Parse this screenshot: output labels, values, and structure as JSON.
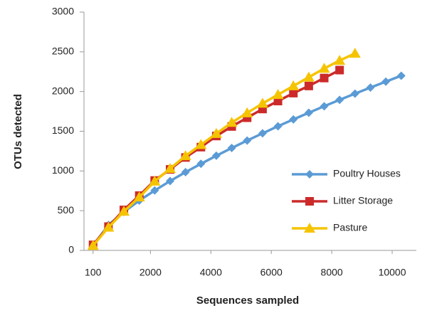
{
  "chart_data": {
    "type": "line",
    "x_label": "Sequences sampled",
    "y_label": "OTUs detected",
    "xlim": [
      -200,
      10800
    ],
    "xticks": [
      100,
      2000,
      4000,
      6000,
      8000,
      10000
    ],
    "ylim": [
      0,
      3000
    ],
    "yticks": [
      0,
      500,
      1000,
      1500,
      2000,
      2500,
      3000
    ],
    "grid": false,
    "legend": "right",
    "series": [
      {
        "name": "Poultry Houses",
        "color": "#5b9bd5",
        "marker": "diamond",
        "x": [
          100,
          610,
          1120,
          1630,
          2140,
          2650,
          3160,
          3670,
          4180,
          4690,
          5200,
          5710,
          6220,
          6730,
          7240,
          7750,
          8260,
          8770,
          9280,
          9790,
          10300
        ],
        "values": [
          60,
          320,
          484,
          627,
          754,
          873,
          985,
          1090,
          1192,
          1289,
          1383,
          1474,
          1563,
          1649,
          1733,
          1815,
          1895,
          1973,
          2050,
          2125,
          2199
        ]
      },
      {
        "name": "Litter Storage",
        "color": "#cc2a2a",
        "marker": "square",
        "x": [
          100,
          610,
          1120,
          1630,
          2140,
          2650,
          3160,
          3670,
          4180,
          4690,
          5200,
          5710,
          6220,
          6730,
          7240,
          7750,
          8260
        ],
        "values": [
          70,
          300,
          510,
          690,
          880,
          1020,
          1170,
          1300,
          1440,
          1560,
          1670,
          1780,
          1880,
          1980,
          2070,
          2170,
          2270
        ]
      },
      {
        "name": "Pasture",
        "color": "#f5c400",
        "marker": "triangle",
        "x": [
          100,
          610,
          1120,
          1630,
          2140,
          2650,
          3160,
          3670,
          4180,
          4690,
          5200,
          5710,
          6220,
          6730,
          7240,
          7750,
          8260,
          8770
        ],
        "values": [
          60,
          290,
          490,
          670,
          870,
          1030,
          1190,
          1330,
          1470,
          1610,
          1730,
          1850,
          1960,
          2070,
          2180,
          2290,
          2390,
          2480
        ]
      }
    ]
  }
}
